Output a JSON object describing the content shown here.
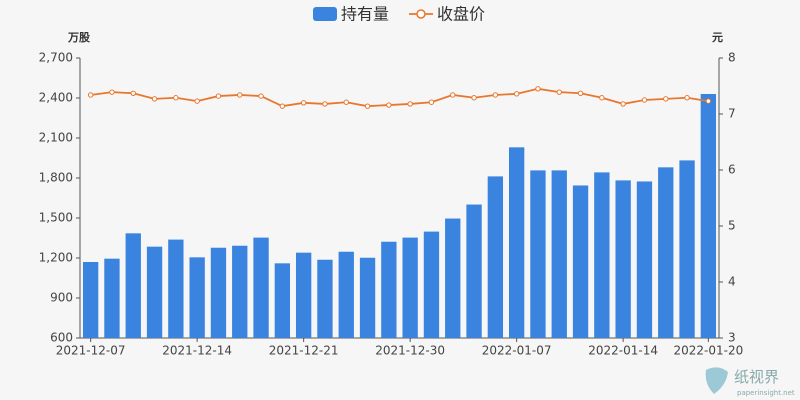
{
  "chart_data": {
    "type": "bar",
    "y_label": "万股",
    "y2_label": "元",
    "categories": [
      "2021-12-07",
      null,
      null,
      null,
      null,
      "2021-12-14",
      null,
      null,
      null,
      null,
      "2021-12-21",
      null,
      null,
      null,
      null,
      "2021-12-30",
      null,
      null,
      null,
      null,
      "2022-01-07",
      null,
      null,
      null,
      null,
      "2022-01-14",
      null,
      null,
      null,
      "2022-01-20"
    ],
    "series": [
      {
        "name": "持有量",
        "type": "bar",
        "color": "#3a84e0",
        "values": [
          1170,
          1195,
          1385,
          1285,
          1338,
          1205,
          1277,
          1292,
          1353,
          1160,
          1240,
          1187,
          1247,
          1202,
          1322,
          1353,
          1398,
          1496,
          1601,
          1812,
          2030,
          1857,
          1857,
          1744,
          1842,
          1782,
          1774,
          1880,
          1932,
          2430
        ]
      },
      {
        "name": "收盘价",
        "type": "line",
        "axis": "y2",
        "color": "#e8772e",
        "values": [
          7.34,
          7.39,
          7.37,
          7.27,
          7.29,
          7.23,
          7.32,
          7.34,
          7.32,
          7.14,
          7.2,
          7.18,
          7.21,
          7.14,
          7.16,
          7.18,
          7.21,
          7.34,
          7.29,
          7.34,
          7.36,
          7.45,
          7.39,
          7.37,
          7.29,
          7.18,
          7.25,
          7.27,
          7.29,
          7.23
        ]
      }
    ],
    "ylim": [
      600,
      2700
    ],
    "yticks": [
      600,
      900,
      {
        "value": 1200,
        "label": "1,200"
      },
      {
        "value": 1500,
        "label": "1,500"
      },
      {
        "value": 1800,
        "label": "1,800"
      },
      {
        "value": 2100,
        "label": "2,100"
      },
      {
        "value": 2400,
        "label": "2,400"
      },
      {
        "value": 2700,
        "label": "2,700"
      }
    ],
    "y2lim": [
      3,
      8
    ],
    "y2ticks": [
      3,
      4,
      5,
      6,
      7,
      8
    ],
    "legend": "top"
  },
  "watermark": {
    "name": "纸视界",
    "url": "paperinsight.net"
  }
}
